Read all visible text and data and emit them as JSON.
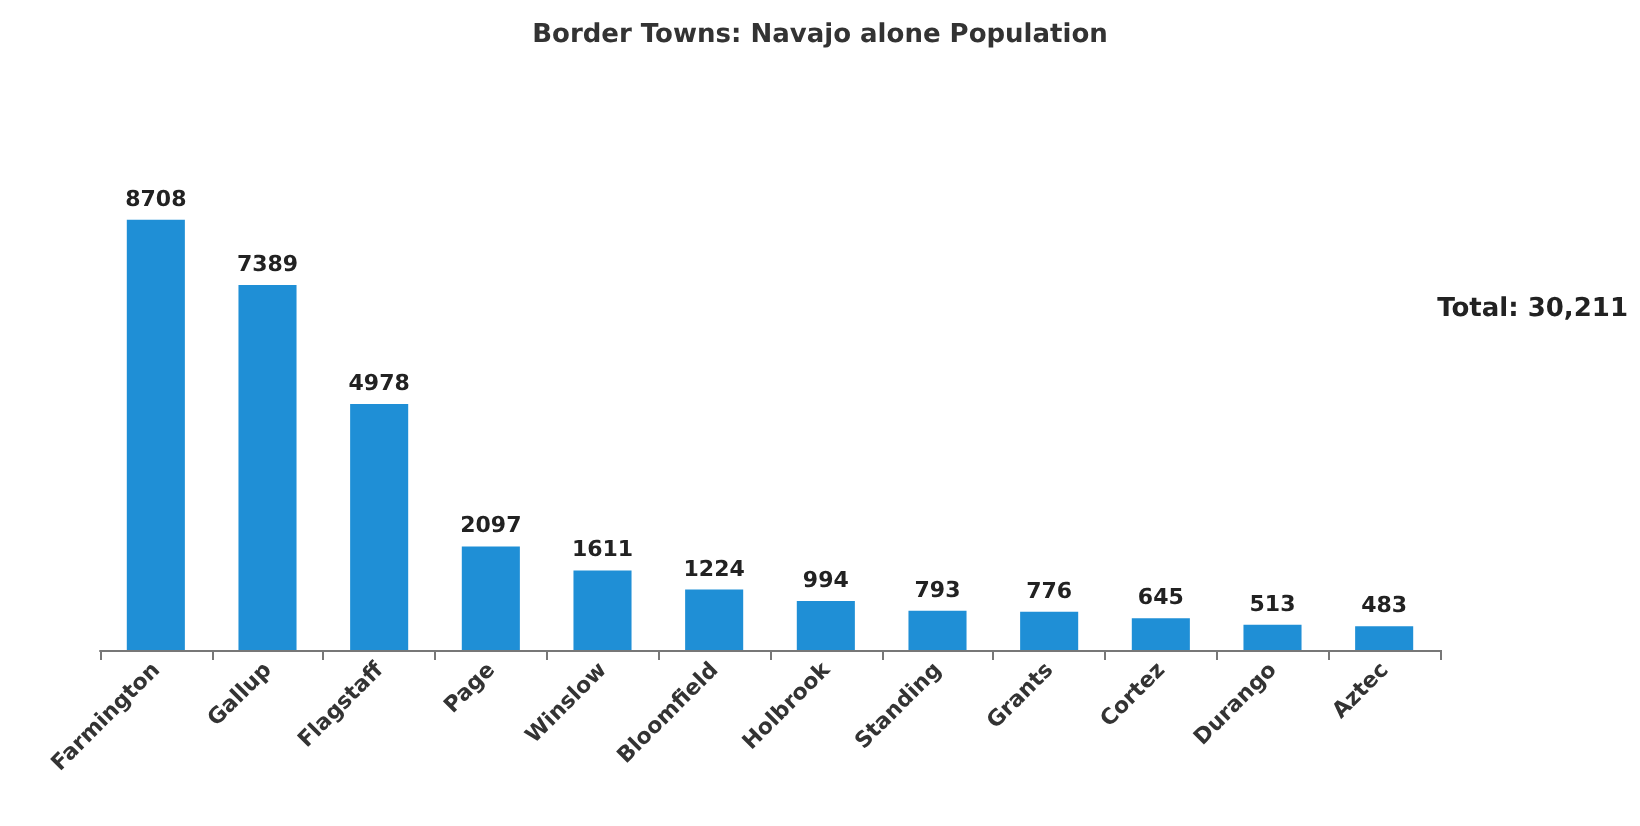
{
  "chart_data": {
    "type": "bar",
    "title": "Border Towns: Navajo alone Population",
    "categories": [
      "Farmington",
      "Gallup",
      "Flagstaff",
      "Page",
      "Winslow",
      "Bloomfield",
      "Holbrook",
      "Standing",
      "Grants",
      "Cortez",
      "Durango",
      "Aztec"
    ],
    "values": [
      8708,
      7389,
      4978,
      2097,
      1611,
      1224,
      994,
      793,
      776,
      645,
      513,
      483
    ],
    "color": "#1f8fd6",
    "data_labels": true,
    "annotations": [
      "Total: 30,211"
    ]
  }
}
